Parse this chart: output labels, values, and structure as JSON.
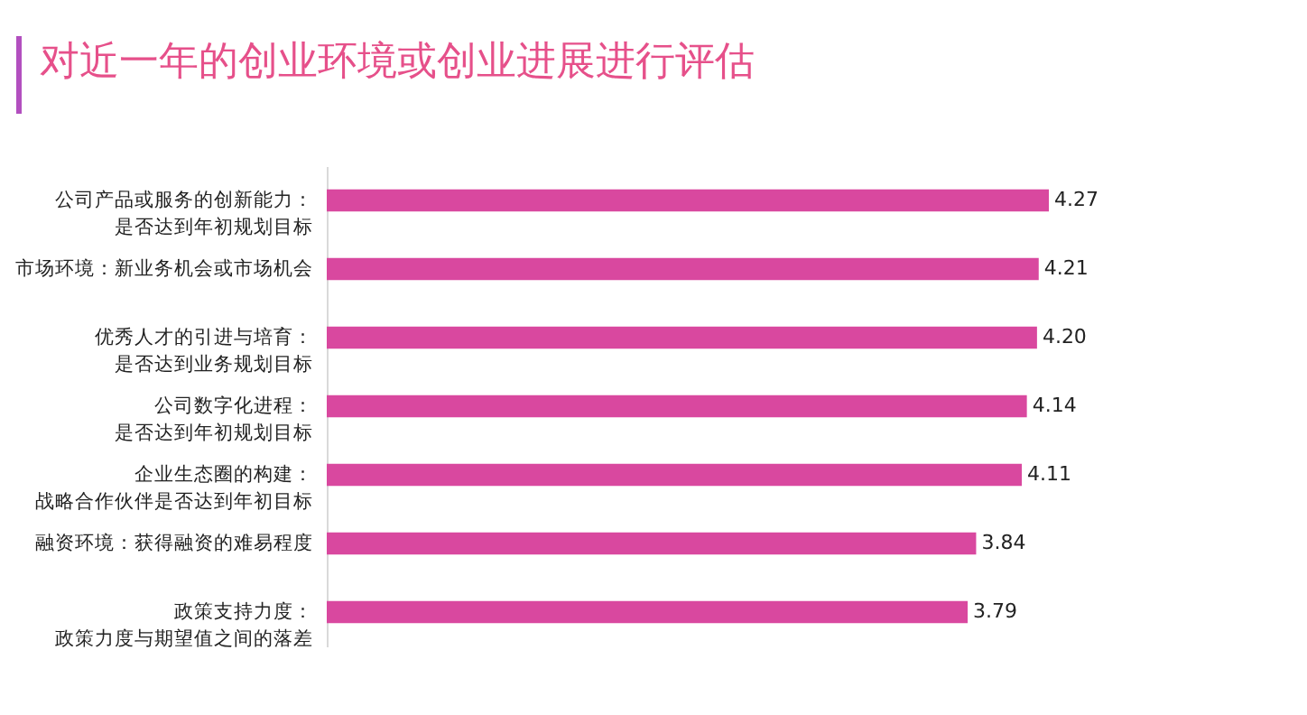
{
  "chart_data": {
    "type": "bar",
    "orientation": "horizontal",
    "title": "对近一年的创业环境或创业进展进行评估",
    "categories": [
      "公司产品或服务的创新能力：是否达到年初规划目标",
      "市场环境：新业务机会或市场机会",
      "优秀人才的引进与培育：是否达到业务规划目标",
      "公司数字化进程：是否达到年初规划目标",
      "企业生态圈的构建：战略合作伙伴是否达到年初目标",
      "融资环境：获得融资的难易程度",
      "政策支持力度：政策力度与期望值之间的落差"
    ],
    "values": [
      4.27,
      4.21,
      4.2,
      4.14,
      4.11,
      3.84,
      3.79
    ],
    "value_labels": [
      "4.27",
      "4.21",
      "4.20",
      "4.14",
      "4.11",
      "3.84",
      "3.79"
    ],
    "color": "#d9489f",
    "tick_labels": "y"
  }
}
